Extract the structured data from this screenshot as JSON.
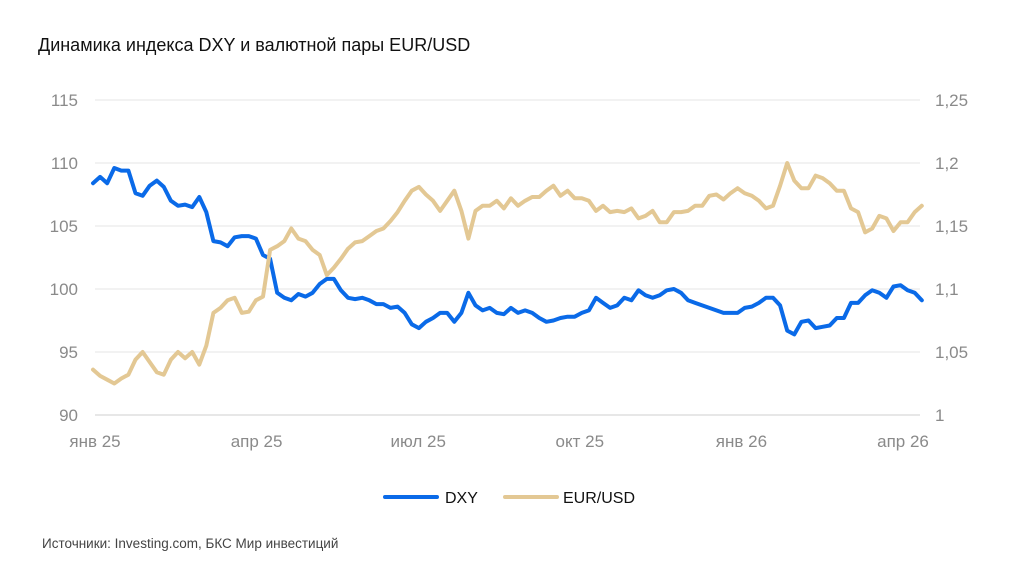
{
  "title": "Динамика индекса DXY и валютной пары EUR/USD",
  "source": "Источники: Investing.com, БКС Мир инвестиций",
  "chart_data": {
    "type": "line",
    "title": "Динамика индекса DXY и валютной пары EUR/USD",
    "x_start": "2024-12-31",
    "x_step_days": 4,
    "x_ticks": [
      "янв 25",
      "апр 25",
      "июл 25",
      "окт 25",
      "янв 26",
      "апр 26"
    ],
    "y_left": {
      "min": 90,
      "max": 115,
      "ticks": [
        "90",
        "95",
        "100",
        "105",
        "110",
        "115"
      ]
    },
    "y_right": {
      "min": 1.0,
      "max": 1.25,
      "ticks": [
        "1",
        "1,05",
        "1,1",
        "1,15",
        "1,2",
        "1,25"
      ]
    },
    "grid": true,
    "legend_position": "bottom",
    "series": [
      {
        "name": "DXY",
        "axis": "left",
        "color": "#0a6ae8",
        "values": [
          108.4,
          108.9,
          108.4,
          109.6,
          109.4,
          109.4,
          107.6,
          107.4,
          108.2,
          108.6,
          108.1,
          107.0,
          106.6,
          106.7,
          106.5,
          107.3,
          106.1,
          103.8,
          103.7,
          103.4,
          104.1,
          104.2,
          104.2,
          104.0,
          102.7,
          102.4,
          99.7,
          99.3,
          99.1,
          99.6,
          99.4,
          99.7,
          100.4,
          100.8,
          100.8,
          99.9,
          99.3,
          99.2,
          99.3,
          99.1,
          98.8,
          98.8,
          98.5,
          98.6,
          98.1,
          97.2,
          96.9,
          97.4,
          97.7,
          98.1,
          98.1,
          97.4,
          98.1,
          99.7,
          98.7,
          98.3,
          98.5,
          98.1,
          98.0,
          98.5,
          98.1,
          98.3,
          98.1,
          97.7,
          97.4,
          97.5,
          97.7,
          97.8,
          97.8,
          98.1,
          98.3,
          99.3,
          98.9,
          98.5,
          98.7,
          99.3,
          99.1,
          99.9,
          99.5,
          99.3,
          99.5,
          99.9,
          100.0,
          99.7,
          99.1,
          98.9,
          98.7,
          98.5,
          98.3,
          98.1,
          98.1,
          98.1,
          98.5,
          98.6,
          98.9,
          99.3,
          99.3,
          98.7,
          96.7,
          96.4,
          97.4,
          97.5,
          96.9,
          97.0,
          97.1,
          97.7,
          97.7,
          98.9,
          98.9,
          99.5,
          99.9,
          99.7,
          99.3,
          100.2,
          100.3,
          99.9,
          99.7,
          99.1
        ]
      },
      {
        "name": "EUR/USD",
        "axis": "right",
        "color": "#e3c894",
        "values": [
          1.036,
          1.031,
          1.028,
          1.025,
          1.029,
          1.032,
          1.044,
          1.05,
          1.042,
          1.034,
          1.032,
          1.044,
          1.05,
          1.045,
          1.05,
          1.04,
          1.055,
          1.081,
          1.085,
          1.091,
          1.093,
          1.081,
          1.082,
          1.091,
          1.094,
          1.131,
          1.134,
          1.138,
          1.148,
          1.14,
          1.138,
          1.131,
          1.127,
          1.111,
          1.117,
          1.124,
          1.132,
          1.137,
          1.138,
          1.142,
          1.146,
          1.148,
          1.154,
          1.161,
          1.17,
          1.178,
          1.181,
          1.175,
          1.17,
          1.162,
          1.17,
          1.178,
          1.162,
          1.14,
          1.162,
          1.166,
          1.166,
          1.17,
          1.164,
          1.172,
          1.166,
          1.17,
          1.173,
          1.173,
          1.178,
          1.182,
          1.174,
          1.178,
          1.172,
          1.172,
          1.17,
          1.162,
          1.166,
          1.161,
          1.162,
          1.161,
          1.164,
          1.156,
          1.158,
          1.162,
          1.153,
          1.153,
          1.161,
          1.161,
          1.162,
          1.166,
          1.166,
          1.174,
          1.175,
          1.171,
          1.176,
          1.18,
          1.176,
          1.174,
          1.17,
          1.164,
          1.166,
          1.182,
          1.2,
          1.186,
          1.18,
          1.18,
          1.19,
          1.188,
          1.184,
          1.178,
          1.178,
          1.164,
          1.161,
          1.145,
          1.148,
          1.158,
          1.156,
          1.146,
          1.153,
          1.153,
          1.161,
          1.166
        ]
      }
    ]
  }
}
